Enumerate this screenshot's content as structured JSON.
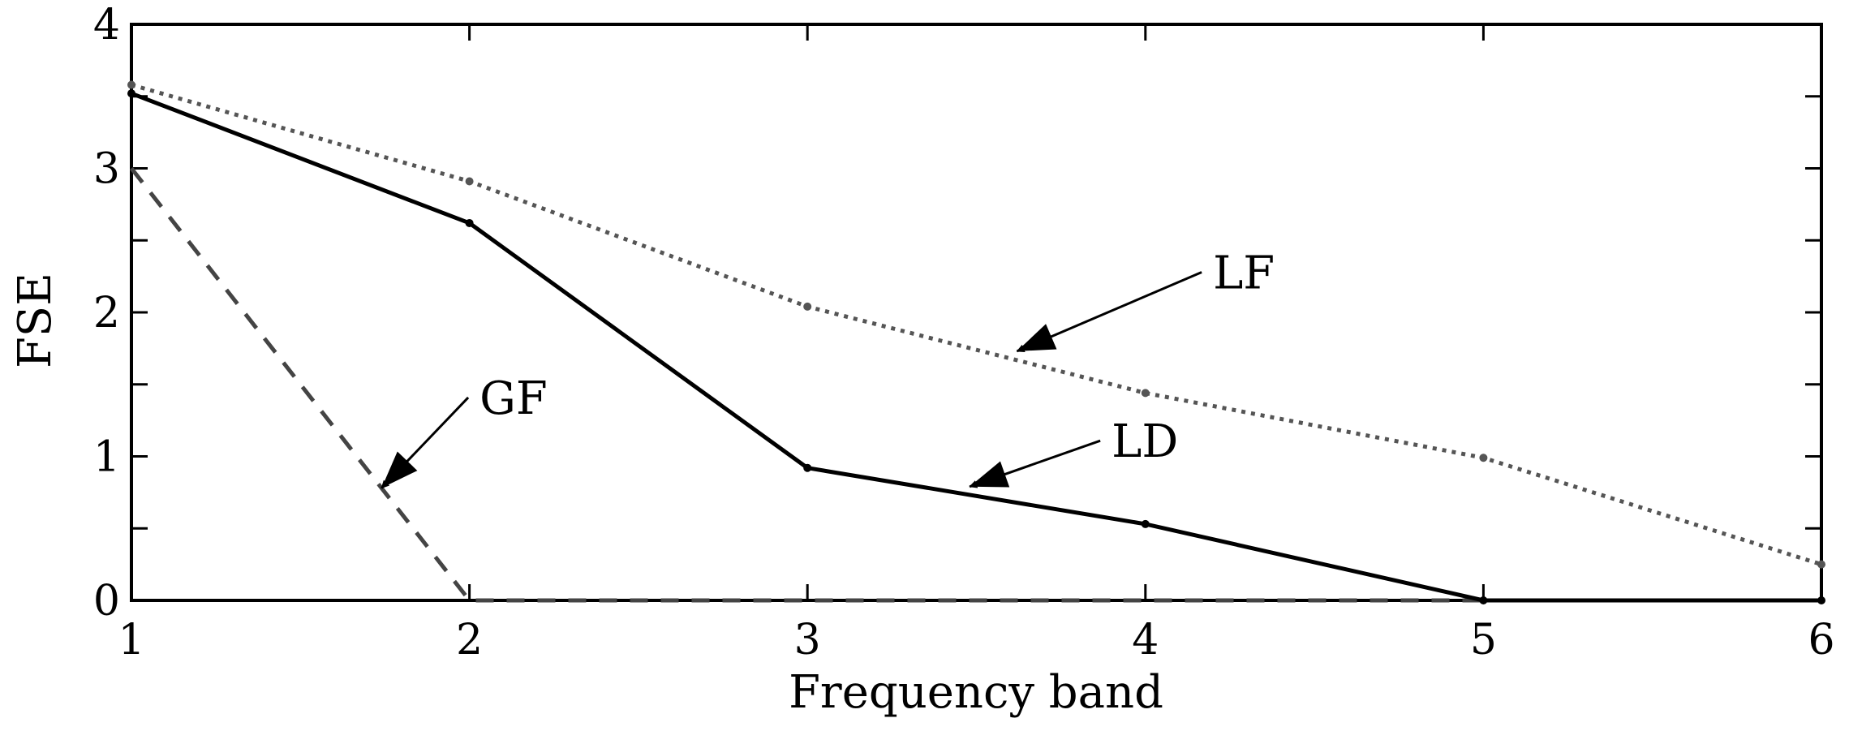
{
  "chart_data": {
    "type": "line",
    "xlabel": "Frequency band",
    "ylabel": "FSE",
    "xlim": [
      1,
      6
    ],
    "ylim": [
      0,
      4
    ],
    "x_ticks": [
      1,
      2,
      3,
      4,
      5,
      6
    ],
    "y_ticks": [
      0,
      1,
      2,
      3,
      4
    ],
    "grid": false,
    "x": [
      1,
      2,
      3,
      4,
      5,
      6
    ],
    "series": [
      {
        "name": "LD",
        "values": [
          3.52,
          2.62,
          0.92,
          0.53,
          0.0,
          0.0
        ],
        "color": "#000000",
        "style": "solid"
      },
      {
        "name": "LF",
        "values": [
          3.58,
          2.91,
          2.04,
          1.44,
          0.99,
          0.25
        ],
        "color": "#555555",
        "style": "dotted"
      },
      {
        "name": "GF",
        "values": [
          3.0,
          0.0,
          0.0,
          0.0,
          0.0,
          0.0
        ],
        "color": "#444444",
        "style": "dashed"
      }
    ],
    "annotations": [
      {
        "text": "LF",
        "target": "LF",
        "text_pos": [
          4.2,
          2.2
        ],
        "arrow_to": [
          3.62,
          1.73
        ]
      },
      {
        "text": "GF",
        "target": "GF",
        "text_pos": [
          2.03,
          1.33
        ],
        "arrow_to": [
          1.74,
          0.78
        ]
      },
      {
        "text": "LD",
        "target": "LD",
        "text_pos": [
          3.9,
          1.03
        ],
        "arrow_to": [
          3.48,
          0.79
        ]
      }
    ]
  }
}
